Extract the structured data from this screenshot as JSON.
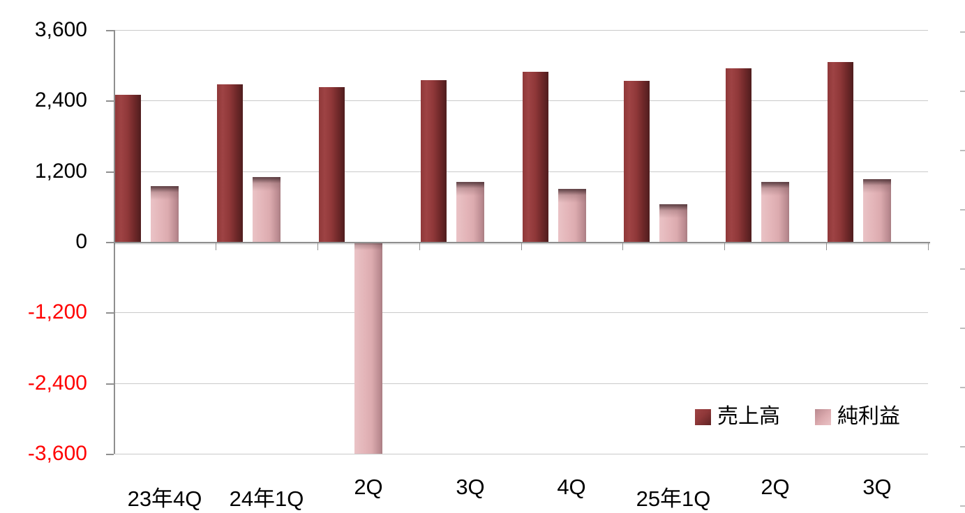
{
  "chart_data": {
    "type": "bar",
    "title": "",
    "xlabel": "",
    "ylabel": "",
    "categories": [
      "23年4Q",
      "24年1Q",
      "2Q",
      "3Q",
      "4Q",
      "25年1Q",
      "2Q",
      "3Q"
    ],
    "series": [
      {
        "name": "売上高",
        "color": "#8f3839",
        "values": [
          2500,
          2680,
          2630,
          2750,
          2890,
          2740,
          2950,
          3060
        ]
      },
      {
        "name": "純利益",
        "color": "#e3b4b8",
        "values": [
          950,
          1100,
          -3600,
          1020,
          900,
          640,
          1020,
          1060
        ]
      }
    ],
    "ylim": [
      -3600,
      3600
    ],
    "yticks": {
      "values": [
        3600,
        2400,
        1200,
        0,
        -1200,
        -2400,
        -3600
      ],
      "labels": [
        "3,600",
        "2,400",
        "1,200",
        "0",
        "-1,200",
        "-2,400",
        "-3,600"
      ]
    },
    "negative_tick_color": "#ff0000",
    "grid": true,
    "legend_position": "inside-bottom-right"
  },
  "legend": {
    "items": [
      {
        "label": "売上高",
        "swatch_color": "#8f3839"
      },
      {
        "label": "純利益",
        "swatch_color": "#e3b4b8"
      }
    ]
  },
  "colors": {
    "background": "#ffffff",
    "gridline": "#c9c9c9",
    "axis": "#8f8f8f",
    "tick_label": "#000000",
    "negative_label": "#ff0000",
    "sales_bar": "#8f3839",
    "profit_bar": "#e3b4b8"
  }
}
